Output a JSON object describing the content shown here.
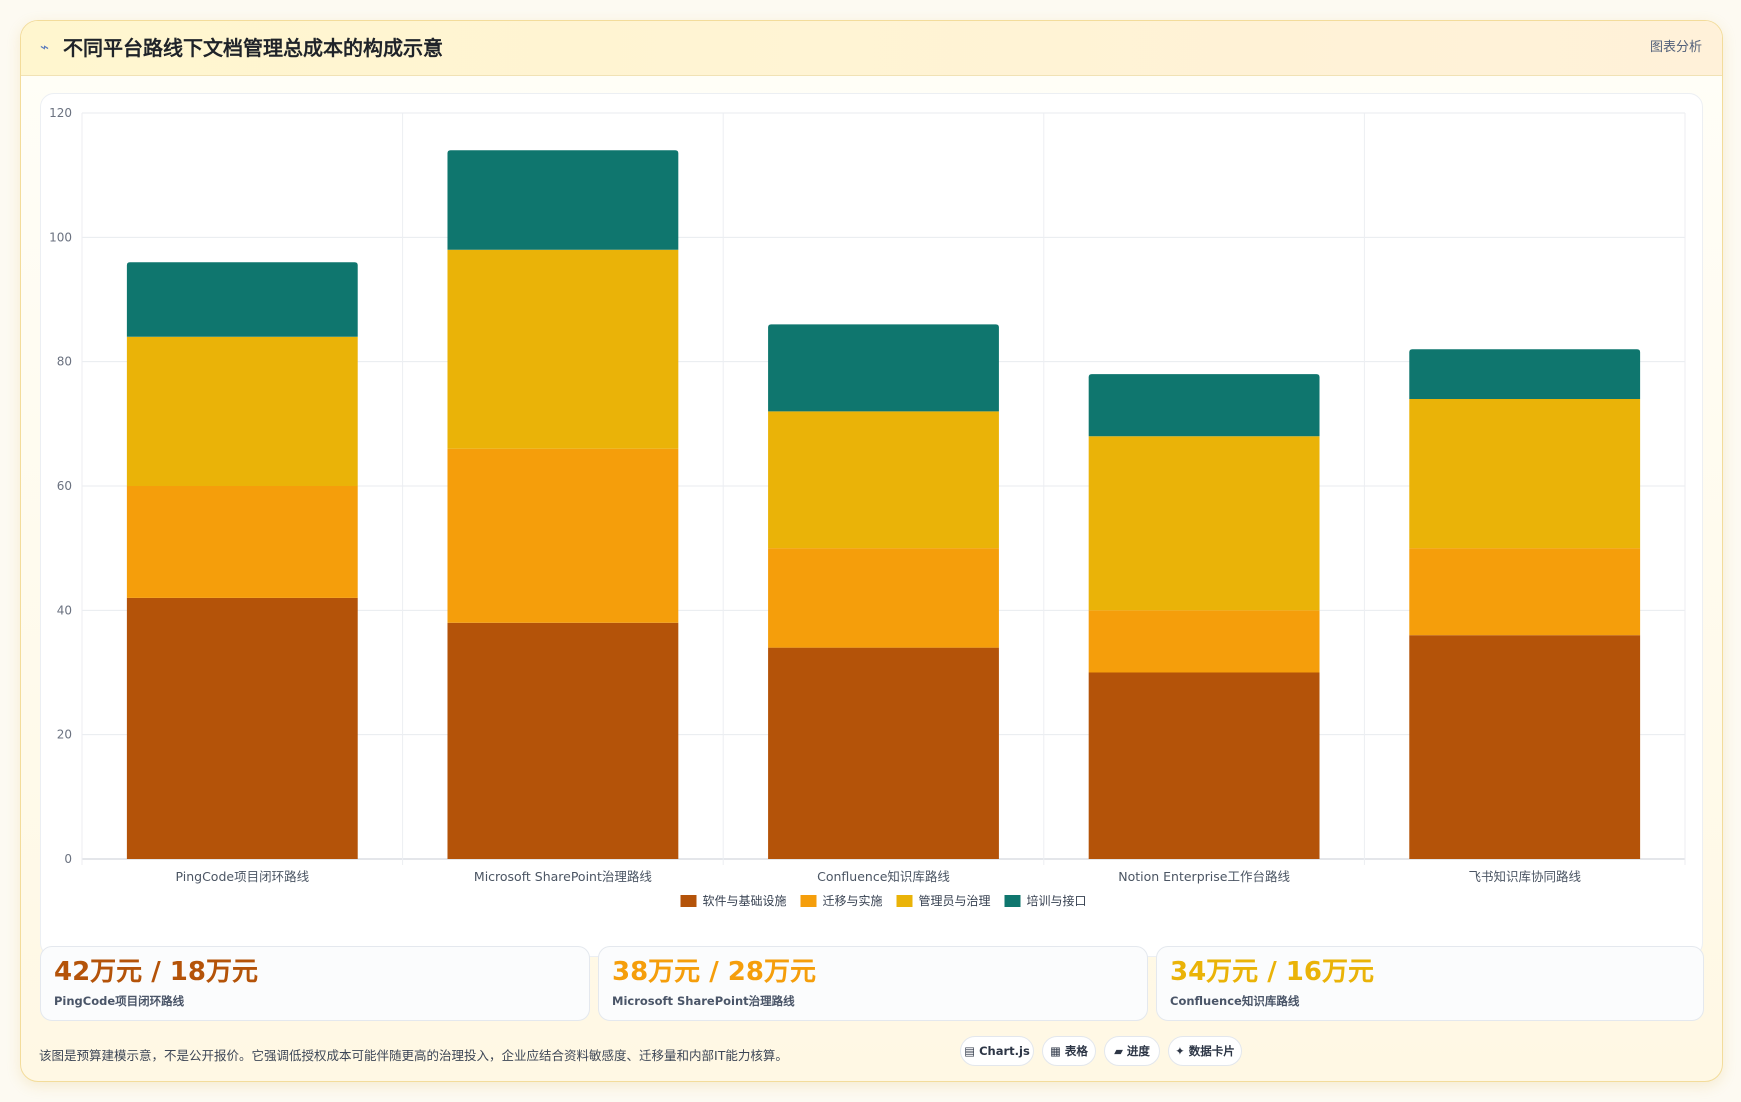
{
  "header": {
    "icon": "chart-line-icon",
    "title": "不同平台路线下文档管理总成本的构成示意",
    "action_label": "图表分析"
  },
  "colors": {
    "software": "#b45309",
    "migration": "#f59e0b",
    "governance": "#eab308",
    "training": "#0f766e"
  },
  "chart_data": {
    "type": "bar",
    "stacked": true,
    "categories": [
      "PingCode项目闭环路线",
      "Microsoft SharePoint治理路线",
      "Confluence知识库路线",
      "Notion Enterprise工作台路线",
      "飞书知识库协同路线"
    ],
    "series": [
      {
        "name": "软件与基础设施",
        "color": "#b45309",
        "values": [
          42,
          38,
          34,
          30,
          36
        ]
      },
      {
        "name": "迁移与实施",
        "color": "#f59e0b",
        "values": [
          18,
          28,
          16,
          10,
          14
        ]
      },
      {
        "name": "管理员与治理",
        "color": "#eab308",
        "values": [
          24,
          32,
          22,
          28,
          24
        ]
      },
      {
        "name": "培训与接口",
        "color": "#0f766e",
        "values": [
          12,
          16,
          14,
          10,
          8
        ]
      }
    ],
    "ylim": [
      0,
      120
    ],
    "yticks": [
      0,
      20,
      40,
      60,
      80,
      100,
      120
    ],
    "grid": true,
    "legend": "bottom-center"
  },
  "stats": [
    {
      "value": "42万元 / 18万元",
      "label": "PingCode项目闭环路线",
      "color": "#b45309"
    },
    {
      "value": "38万元 / 28万元",
      "label": "Microsoft SharePoint治理路线",
      "color": "#f59e0b"
    },
    {
      "value": "34万元 / 16万元",
      "label": "Confluence知识库路线",
      "color": "#eab308"
    }
  ],
  "footnote": "该图是预算建模示意，不是公开报价。它强调低授权成本可能伴随更高的治理投入，企业应结合资料敏感度、迁移量和内部IT能力核算。",
  "chips": [
    {
      "label": "▤ Chart.js"
    },
    {
      "label": "▦ 表格"
    },
    {
      "label": "▰ 进度"
    },
    {
      "label": "✦ 数据卡片"
    }
  ]
}
